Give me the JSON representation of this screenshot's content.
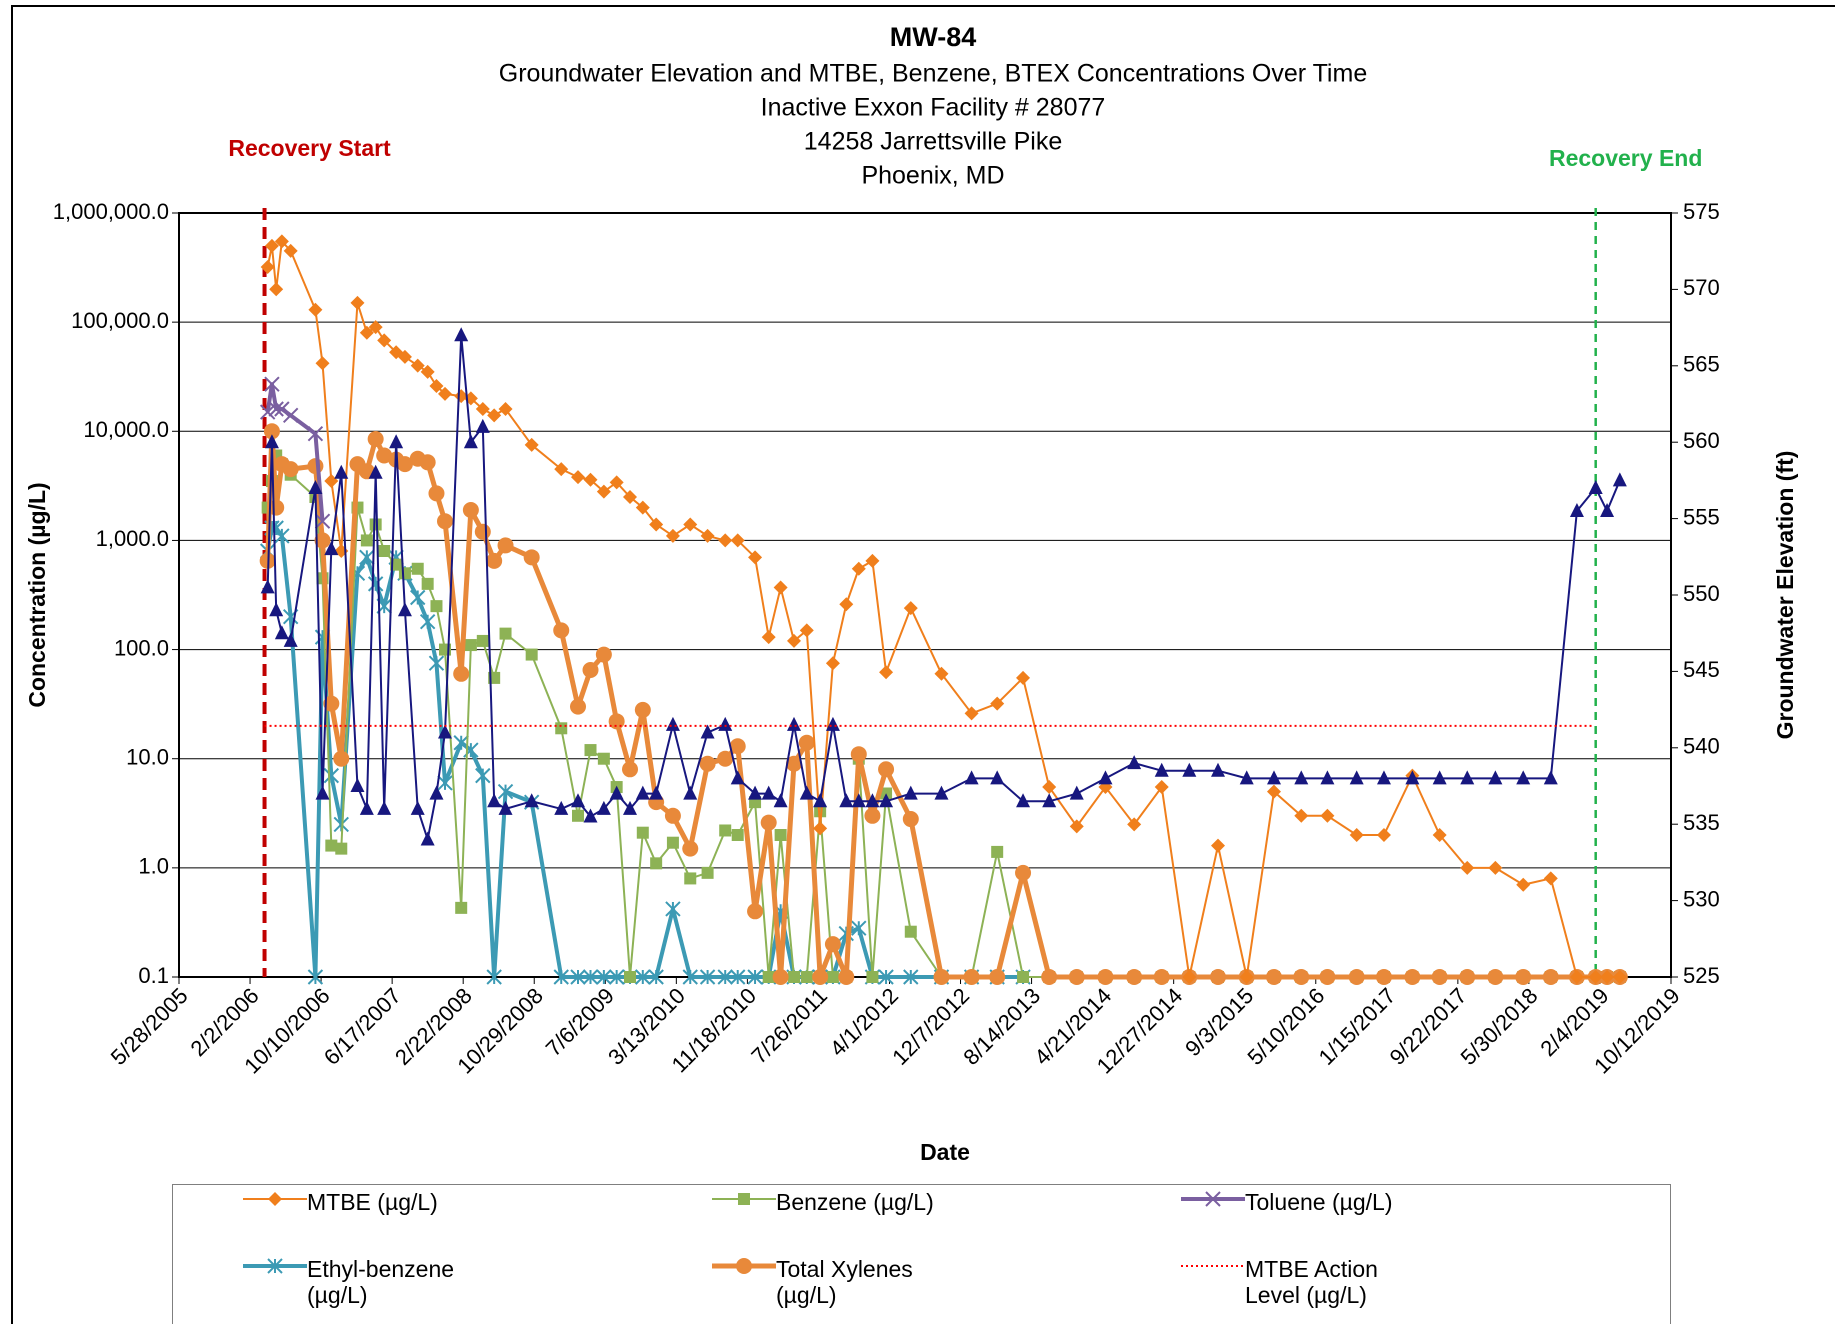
{
  "chart_data": {
    "type": "line",
    "title": "MW-84",
    "subtitle": [
      "Groundwater Elevation and MTBE, Benzene, BTEX Concentrations Over Time",
      "Inactive Exxon Facility # 28077",
      "14258 Jarrettsville Pike",
      "Phoenix, MD"
    ],
    "x_label": "Date",
    "y_label": "Concentration (µg/L)",
    "y2_label": "Groundwater Elevation (ft)",
    "log_y": true,
    "grid": true,
    "ylim": [
      0.1,
      1000000
    ],
    "yticks": [
      0.1,
      {
        "value": 1,
        "label": "1.0"
      },
      {
        "value": 10,
        "label": "10.0"
      },
      {
        "value": 100,
        "label": "100.0"
      },
      {
        "value": 1000,
        "label": "1,000.0"
      },
      {
        "value": 10000,
        "label": "10,000.0"
      },
      {
        "value": 100000,
        "label": "100,000.0"
      },
      {
        "value": 1000000,
        "label": "1,000,000.0"
      }
    ],
    "y2lim": [
      525,
      575
    ],
    "y2ticks": [
      525,
      530,
      535,
      540,
      545,
      550,
      555,
      560,
      565,
      570,
      575
    ],
    "xlim": [
      "2005-05-28",
      "2019-10-12"
    ],
    "xticks": [
      {
        "value": "2005-05-28",
        "label": "5/28/2005"
      },
      {
        "value": "2006-02-02",
        "label": "2/2/2006"
      },
      {
        "value": "2006-10-10",
        "label": "10/10/2006"
      },
      {
        "value": "2007-06-17",
        "label": "6/17/2007"
      },
      {
        "value": "2008-02-22",
        "label": "2/22/2008"
      },
      {
        "value": "2008-10-29",
        "label": "10/29/2008"
      },
      {
        "value": "2009-07-06",
        "label": "7/6/2009"
      },
      {
        "value": "2010-03-13",
        "label": "3/13/2010"
      },
      {
        "value": "2010-11-18",
        "label": "11/18/2010"
      },
      {
        "value": "2011-07-26",
        "label": "7/26/2011"
      },
      {
        "value": "2012-04-01",
        "label": "4/1/2012"
      },
      {
        "value": "2012-12-07",
        "label": "12/7/2012"
      },
      {
        "value": "2013-08-14",
        "label": "8/14/2013"
      },
      {
        "value": "2014-04-21",
        "label": "4/21/2014"
      },
      {
        "value": "2014-12-27",
        "label": "12/27/2014"
      },
      {
        "value": "2015-09-03",
        "label": "9/3/2015"
      },
      {
        "value": "2016-05-10",
        "label": "5/10/2016"
      },
      {
        "value": "2017-01-15",
        "label": "1/15/2017"
      },
      {
        "value": "2017-09-22",
        "label": "9/22/2017"
      },
      {
        "value": "2018-05-30",
        "label": "5/30/2018"
      },
      {
        "value": "2019-02-04",
        "label": "2/4/2019"
      },
      {
        "value": "2019-10-12",
        "label": "10/12/2019"
      }
    ],
    "x": [
      "2006-04-05",
      "2006-04-20",
      "2006-05-05",
      "2006-05-25",
      "2006-06-25",
      "2006-09-20",
      "2006-10-15",
      "2006-11-15",
      "2006-12-20",
      "2007-02-15",
      "2007-03-20",
      "2007-04-20",
      "2007-05-20",
      "2007-07-01",
      "2007-08-01",
      "2007-09-15",
      "2007-10-20",
      "2007-11-20",
      "2007-12-20",
      "2008-02-15",
      "2008-03-20",
      "2008-05-01",
      "2008-06-10",
      "2008-07-20",
      "2008-10-20",
      "2009-02-01",
      "2009-04-01",
      "2009-05-15",
      "2009-07-01",
      "2009-08-15",
      "2009-10-01",
      "2009-11-15",
      "2010-01-01",
      "2010-03-01",
      "2010-05-01",
      "2010-07-01",
      "2010-09-01",
      "2010-10-15",
      "2010-12-15",
      "2011-02-01",
      "2011-03-15",
      "2011-05-01",
      "2011-06-15",
      "2011-08-01",
      "2011-09-15",
      "2011-11-01",
      "2011-12-15",
      "2012-02-01",
      "2012-03-20",
      "2012-06-15",
      "2012-10-01",
      "2013-01-15",
      "2013-04-15",
      "2013-07-15",
      "2013-10-15",
      "2014-01-20",
      "2014-05-01",
      "2014-08-10",
      "2014-11-15",
      "2015-02-20",
      "2015-06-01",
      "2015-09-10",
      "2015-12-15",
      "2016-03-20",
      "2016-06-20",
      "2016-10-01",
      "2017-01-05",
      "2017-04-15",
      "2017-07-20",
      "2017-10-25",
      "2018-02-01",
      "2018-05-10",
      "2018-08-15",
      "2018-11-15",
      "2019-01-20",
      "2019-03-01",
      "2019-04-15"
    ],
    "series": [
      {
        "name": "Ethyl-benzene (µg/L)",
        "color": "#3c9ab4",
        "marker": "asterisk",
        "width": 4,
        "values": [
          800,
          1300,
          1300,
          1100,
          200,
          0.1,
          130,
          7,
          2.5,
          500,
          700,
          400,
          250,
          700,
          500,
          300,
          180,
          75,
          6,
          14,
          12,
          7,
          0.1,
          5,
          4,
          0.1,
          0.1,
          0.1,
          0.1,
          0.1,
          0.1,
          0.1,
          0.1,
          0.42,
          0.1,
          0.1,
          0.1,
          0.1,
          0.1,
          0.1,
          0.4,
          0.1,
          0.1,
          0.1,
          0.1,
          0.25,
          0.28,
          0.1,
          0.1,
          0.1,
          0.1,
          0.1,
          0.1,
          0.1,
          null,
          null,
          null,
          null,
          null,
          null,
          null,
          null,
          null,
          null,
          null,
          null,
          null,
          null,
          null,
          null,
          null,
          null,
          null,
          null,
          null,
          null,
          null
        ]
      },
      {
        "name": "Benzene (µg/L)",
        "color": "#8db255",
        "marker": "square",
        "width": 2,
        "values": [
          2000,
          3500,
          6000,
          5000,
          4000,
          2500,
          450,
          1.6,
          1.5,
          2000,
          1000,
          1400,
          800,
          600,
          500,
          550,
          400,
          250,
          100,
          0.43,
          110,
          120,
          55,
          140,
          90,
          19,
          3,
          12,
          10,
          5.5,
          0.1,
          2.1,
          1.1,
          1.7,
          0.8,
          0.9,
          2.2,
          2,
          4,
          0.1,
          2,
          0.1,
          0.1,
          3.3,
          0.1,
          0.1,
          10,
          0.1,
          4.8,
          0.26,
          0.1,
          0.1,
          1.4,
          0.1,
          0.1,
          0.1,
          0.1,
          0.1,
          0.1,
          0.1,
          0.1,
          0.1,
          0.1,
          0.1,
          0.1,
          0.1,
          0.1,
          0.1,
          0.1,
          0.1,
          0.1,
          0.1,
          0.1,
          0.1,
          0.1,
          0.1,
          0.1
        ]
      },
      {
        "name": "Total Xylenes (µg/L)",
        "color": "#e8893a",
        "marker": "circle",
        "width": 5,
        "values": [
          650,
          10000,
          2000,
          5000,
          4500,
          4800,
          1000,
          32,
          10,
          5000,
          4300,
          8500,
          6000,
          5500,
          5000,
          5600,
          5200,
          2700,
          1500,
          60,
          1900,
          1200,
          650,
          900,
          700,
          150,
          30,
          65,
          90,
          22,
          8,
          28,
          4,
          3,
          1.5,
          9,
          10,
          13,
          0.4,
          2.6,
          0.1,
          9,
          14,
          0.1,
          0.2,
          0.1,
          11,
          3,
          8,
          2.8,
          0.1,
          0.1,
          0.1,
          0.9,
          0.1,
          0.1,
          0.1,
          0.1,
          0.1,
          0.1,
          0.1,
          0.1,
          0.1,
          0.1,
          0.1,
          0.1,
          0.1,
          0.1,
          0.1,
          0.1,
          0.1,
          0.1,
          0.1,
          0.1,
          0.1,
          0.1,
          0.1
        ]
      },
      {
        "name": "MTBE (µg/L)",
        "color": "#f07f1c",
        "marker": "diamond",
        "width": 2,
        "values": [
          320000,
          500000,
          200000,
          550000,
          450000,
          130000,
          42000,
          3500,
          800,
          150000,
          80000,
          90000,
          68000,
          53000,
          48000,
          40000,
          35000,
          26000,
          22000,
          21000,
          20000,
          16000,
          14000,
          16000,
          7500,
          4500,
          3800,
          3600,
          2800,
          3400,
          2500,
          2000,
          1400,
          1100,
          1400,
          1100,
          1000,
          1000,
          700,
          130,
          370,
          120,
          150,
          2.3,
          75,
          260,
          550,
          650,
          62,
          240,
          60,
          26,
          32,
          55,
          5.5,
          2.4,
          5.5,
          2.5,
          5.5,
          0.1,
          1.6,
          0.1,
          5,
          3,
          3,
          2,
          2,
          7,
          2,
          1,
          1,
          0.7,
          0.8,
          0.1,
          0.1,
          0.1,
          0.1
        ]
      },
      {
        "name": "Toluene (µg/L)",
        "color": "#7a5fa0",
        "marker": "x",
        "width": 4,
        "values": [
          15000,
          27000,
          16000,
          16000,
          14000,
          9500,
          1500,
          null,
          null,
          null,
          null,
          null,
          null,
          null,
          null,
          null,
          null,
          null,
          null,
          null,
          null,
          null,
          null,
          null,
          null,
          null,
          null,
          null,
          null,
          null,
          null,
          null,
          null,
          null,
          null,
          null,
          null,
          null,
          null,
          null,
          null,
          null,
          null,
          null,
          null,
          null,
          null,
          null,
          null,
          null,
          null,
          null,
          null,
          null,
          null,
          null,
          null,
          null,
          null,
          null,
          null,
          null,
          null,
          null,
          null,
          null,
          null,
          null,
          null,
          null,
          null,
          null,
          null,
          null,
          null,
          null,
          null
        ]
      },
      {
        "color": "#17177f",
        "marker": "triangle",
        "width": 2,
        "axis": "y2",
        "values": [
          550.5,
          560,
          549,
          547.5,
          547,
          557,
          537,
          553,
          558,
          537.5,
          536,
          558,
          536,
          560,
          549,
          536,
          534,
          537,
          541,
          567,
          560,
          561,
          536.5,
          536,
          536.5,
          536,
          536.5,
          535.5,
          536,
          537,
          536,
          537,
          537,
          541.5,
          537,
          541,
          541.5,
          538,
          537,
          537,
          536.5,
          541.5,
          537,
          536.5,
          541.5,
          536.5,
          536.5,
          536.5,
          536.5,
          537,
          537,
          538,
          538,
          536.5,
          536.5,
          537,
          538,
          539,
          538.5,
          538.5,
          538.5,
          538,
          538,
          538,
          538,
          538,
          538,
          538,
          538,
          538,
          538,
          538,
          538,
          555.5,
          557,
          555.5,
          557.5
        ]
      },
      {
        "name": "MTBE Action Level (µg/L)",
        "color": "#ff0000",
        "dash": "dotted",
        "width": 2,
        "x": [
          "2006-03-25",
          "2019-01-15"
        ],
        "values": [
          20,
          20
        ]
      }
    ],
    "annotations": [
      {
        "text": "Recovery Start",
        "x": "2006-03-25",
        "color": "#c00000"
      },
      {
        "text": "Recovery End",
        "x": "2019-01-20",
        "color": "#22b14c"
      }
    ]
  }
}
